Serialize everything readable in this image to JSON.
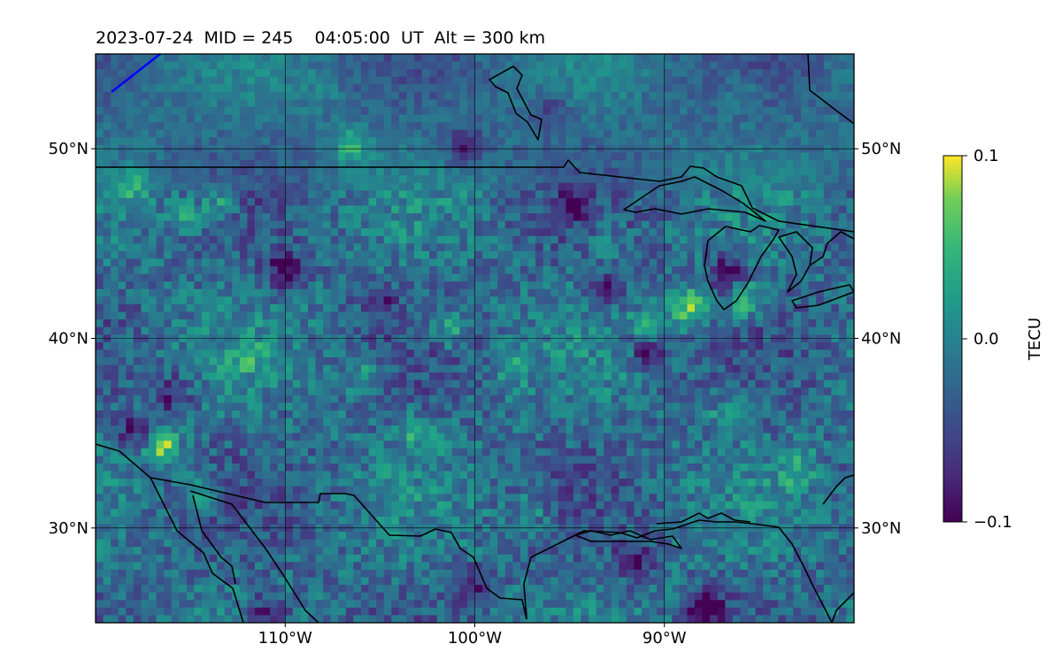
{
  "header": {
    "title": "2023-07-24  MID = 245    04:05:00  UT  Alt = 300 km"
  },
  "map": {
    "lon_range": [
      -120,
      -80
    ],
    "lat_range": [
      25,
      55
    ],
    "lon_ticks": [
      {
        "value": -110,
        "label": "110°W"
      },
      {
        "value": -100,
        "label": "100°W"
      },
      {
        "value": -90,
        "label": "90°W"
      }
    ],
    "lat_ticks": [
      {
        "value": 50,
        "label": "50°N"
      },
      {
        "value": 40,
        "label": "40°N"
      },
      {
        "value": 30,
        "label": "30°N"
      }
    ],
    "field_colormap": "viridis",
    "coastline_color": "#000000",
    "track_color": "#0000ff"
  },
  "colorbar": {
    "label": "TECU",
    "vmin": -0.1,
    "vmax": 0.1,
    "ticks": [
      {
        "value": 0.1,
        "label": "0.1"
      },
      {
        "value": 0.0,
        "label": "0.0"
      },
      {
        "value": -0.1,
        "label": "−0.1"
      }
    ]
  },
  "chart_data": {
    "type": "heatmap",
    "title": "2023-07-24  MID = 245    04:05:00  UT  Alt = 300 km",
    "xlabel": "",
    "ylabel": "",
    "xlim": [
      -120,
      -80
    ],
    "ylim": [
      25,
      55
    ],
    "colorbar_label": "TECU",
    "value_range": [
      -0.1,
      0.1
    ],
    "grid": true,
    "hotspots": [
      {
        "lon": -116.5,
        "lat": 34.3,
        "value": 0.09
      },
      {
        "lon": -114.5,
        "lat": 32.0,
        "value": 0.07
      },
      {
        "lon": -101.3,
        "lat": 40.5,
        "value": 0.06
      },
      {
        "lon": -90.6,
        "lat": 40.3,
        "value": 0.08
      },
      {
        "lon": -88.7,
        "lat": 41.6,
        "value": 0.1
      },
      {
        "lon": -85.8,
        "lat": 42.0,
        "value": 0.08
      },
      {
        "lon": -113.5,
        "lat": 47.0,
        "value": 0.06
      },
      {
        "lon": -115.5,
        "lat": 46.5,
        "value": 0.06
      },
      {
        "lon": -106.5,
        "lat": 50.2,
        "value": 0.06
      },
      {
        "lon": -86.5,
        "lat": 36.0,
        "value": 0.06
      },
      {
        "lon": -87.8,
        "lat": 25.8,
        "value": -0.1
      },
      {
        "lon": -110.8,
        "lat": 25.5,
        "value": -0.09
      },
      {
        "lon": -110.0,
        "lat": 43.5,
        "value": -0.09
      },
      {
        "lon": -90.8,
        "lat": 39.5,
        "value": -0.09
      },
      {
        "lon": -91.5,
        "lat": 28.2,
        "value": -0.07
      },
      {
        "lon": -100.5,
        "lat": 50.0,
        "value": -0.07
      },
      {
        "lon": -86.7,
        "lat": 43.5,
        "value": -0.08
      },
      {
        "lon": -116.0,
        "lat": 37.0,
        "value": -0.07
      },
      {
        "lon": -118.0,
        "lat": 35.0,
        "value": -0.06
      },
      {
        "lon": -93.0,
        "lat": 42.5,
        "value": -0.06
      },
      {
        "lon": -105.0,
        "lat": 42.0,
        "value": -0.05
      },
      {
        "lon": -95.0,
        "lat": 47.0,
        "value": -0.05
      },
      {
        "lon": -103.0,
        "lat": 35.0,
        "value": 0.05
      },
      {
        "lon": -97.0,
        "lat": 31.0,
        "value": 0.04
      },
      {
        "lon": -106.0,
        "lat": 38.0,
        "value": 0.05
      },
      {
        "lon": -98.0,
        "lat": 38.5,
        "value": 0.04
      },
      {
        "lon": -83.0,
        "lat": 33.0,
        "value": 0.05
      },
      {
        "lon": -112.0,
        "lat": 39.0,
        "value": 0.04
      },
      {
        "lon": -93.0,
        "lat": 45.0,
        "value": 0.04
      },
      {
        "lon": -118.0,
        "lat": 48.0,
        "value": 0.05
      },
      {
        "lon": -96.0,
        "lat": 52.0,
        "value": -0.04
      },
      {
        "lon": -108.0,
        "lat": 53.0,
        "value": 0.02
      },
      {
        "lon": -86.0,
        "lat": 53.0,
        "value": 0.03
      },
      {
        "lon": -100.0,
        "lat": 27.0,
        "value": -0.05
      }
    ]
  }
}
